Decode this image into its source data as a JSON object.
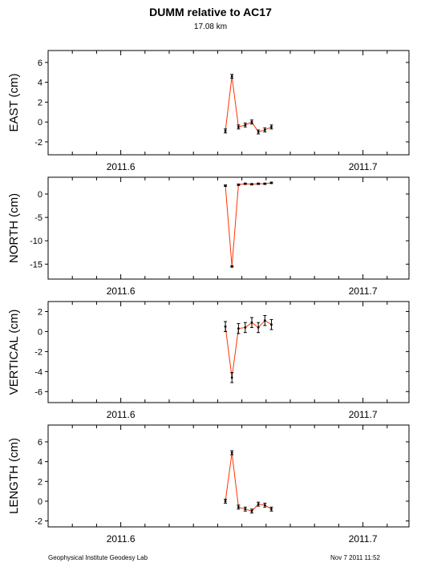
{
  "header": {
    "title": "DUMM relative to AC17",
    "subtitle": "17.08 km"
  },
  "footer": {
    "left": "Geophysical Institute Geodesy Lab",
    "right": "Nov 7 2011 11:52"
  },
  "colors": {
    "line": "#ff3300",
    "point": "#000000",
    "frame": "#000000"
  },
  "chart_data": [
    {
      "type": "line",
      "ylabel": "EAST (cm)",
      "xlim": [
        2011.57,
        2011.719
      ],
      "ylim": [
        -3.3,
        7.2
      ],
      "xticks": [
        2011.6,
        2011.7
      ],
      "xtick_labels": [
        "2011.6",
        "2011.7"
      ],
      "yticks": [
        -2,
        0,
        2,
        4,
        6
      ],
      "ytick_labels": [
        "-2",
        "0",
        "2",
        "4",
        "6"
      ],
      "x": [
        2011.6432,
        2011.6459,
        2011.6486,
        2011.6514,
        2011.6541,
        2011.6568,
        2011.6595,
        2011.6622
      ],
      "values": [
        -0.9,
        4.6,
        -0.5,
        -0.3,
        0.0,
        -1.0,
        -0.8,
        -0.5
      ],
      "errors": [
        0.2,
        0.2,
        0.2,
        0.2,
        0.2,
        0.2,
        0.2,
        0.2
      ]
    },
    {
      "type": "line",
      "ylabel": "NORTH (cm)",
      "xlim": [
        2011.57,
        2011.719
      ],
      "ylim": [
        -18.2,
        3.6
      ],
      "xticks": [
        2011.6,
        2011.7
      ],
      "xtick_labels": [
        "2011.6",
        "2011.7"
      ],
      "yticks": [
        -15,
        -10,
        -5,
        0
      ],
      "ytick_labels": [
        "-15",
        "-10",
        "-5",
        "0"
      ],
      "x": [
        2011.6432,
        2011.6459,
        2011.6486,
        2011.6514,
        2011.6541,
        2011.6568,
        2011.6595,
        2011.6622
      ],
      "values": [
        1.8,
        -15.5,
        2.0,
        2.2,
        2.1,
        2.2,
        2.2,
        2.4
      ],
      "errors": [
        0.15,
        0.15,
        0.15,
        0.15,
        0.15,
        0.15,
        0.15,
        0.15
      ]
    },
    {
      "type": "line",
      "ylabel": "VERTICAL (cm)",
      "xlim": [
        2011.57,
        2011.719
      ],
      "ylim": [
        -7.1,
        3.0
      ],
      "xticks": [
        2011.6,
        2011.7
      ],
      "xtick_labels": [
        "2011.6",
        "2011.7"
      ],
      "yticks": [
        -6,
        -4,
        -2,
        0,
        2
      ],
      "ytick_labels": [
        "-6",
        "-4",
        "-2",
        "0",
        "2"
      ],
      "x": [
        2011.6432,
        2011.6459,
        2011.6486,
        2011.6514,
        2011.6541,
        2011.6568,
        2011.6595,
        2011.6622
      ],
      "values": [
        0.5,
        -4.6,
        0.3,
        0.4,
        0.9,
        0.4,
        1.1,
        0.7
      ],
      "errors": [
        0.5,
        0.5,
        0.5,
        0.5,
        0.5,
        0.5,
        0.5,
        0.5
      ]
    },
    {
      "type": "line",
      "ylabel": "LENGTH (cm)",
      "xlim": [
        2011.57,
        2011.719
      ],
      "ylim": [
        -2.6,
        7.7
      ],
      "xticks": [
        2011.6,
        2011.7
      ],
      "xtick_labels": [
        "2011.6",
        "2011.7"
      ],
      "yticks": [
        -2,
        0,
        2,
        4,
        6
      ],
      "ytick_labels": [
        "-2",
        "0",
        "2",
        "4",
        "6"
      ],
      "x": [
        2011.6432,
        2011.6459,
        2011.6486,
        2011.6514,
        2011.6541,
        2011.6568,
        2011.6595,
        2011.6622
      ],
      "values": [
        0.0,
        4.9,
        -0.6,
        -0.8,
        -1.0,
        -0.3,
        -0.4,
        -0.8
      ],
      "errors": [
        0.2,
        0.2,
        0.2,
        0.2,
        0.2,
        0.2,
        0.2,
        0.2
      ]
    }
  ]
}
